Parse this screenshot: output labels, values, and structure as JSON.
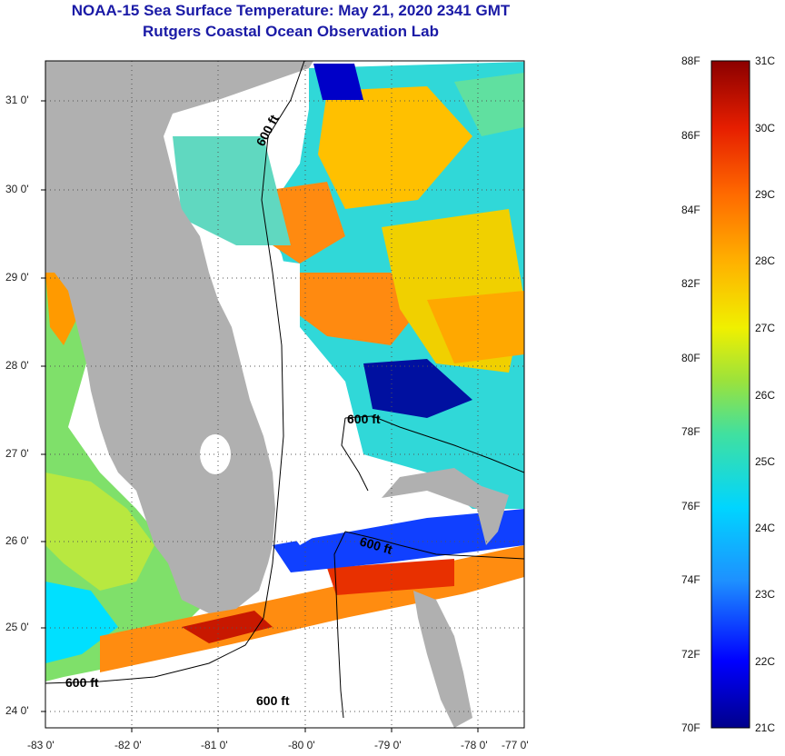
{
  "title": {
    "line1": "NOAA-15 Sea Surface Temperature:  May 21, 2020 2341 GMT",
    "line2": "Rutgers Coastal Ocean Observation Lab"
  },
  "map": {
    "lat_labels": [
      "31 0'",
      "30 0'",
      "29 0'",
      "28 0'",
      "27 0'",
      "26 0'",
      "25 0'",
      "24 0'"
    ],
    "lon_labels": [
      "-83 0'",
      "-82 0'",
      "-81 0'",
      "-80 0'",
      "-79 0'",
      "-78 0'",
      "-77 0'"
    ],
    "contour_labels": [
      "600 ft",
      "600 ft",
      "600 ft",
      "600 ft",
      "600 ft"
    ],
    "colors": {
      "land": "#b0b0b0",
      "no_data": "#ffffff",
      "contour": "#000000",
      "grid": "#555555"
    }
  },
  "colorbar": {
    "f_labels": [
      "88F",
      "86F",
      "84F",
      "82F",
      "80F",
      "78F",
      "76F",
      "74F",
      "72F",
      "70F"
    ],
    "c_labels": [
      "31C",
      "30C",
      "29C",
      "28C",
      "27C",
      "26C",
      "25C",
      "24C",
      "23C",
      "22C",
      "21C"
    ],
    "colors": [
      "#00008b",
      "#0000ff",
      "#1e90ff",
      "#00d5ff",
      "#40e0a0",
      "#9be23c",
      "#f0f000",
      "#ffb000",
      "#ff6a00",
      "#e61e00",
      "#8b0000"
    ]
  }
}
